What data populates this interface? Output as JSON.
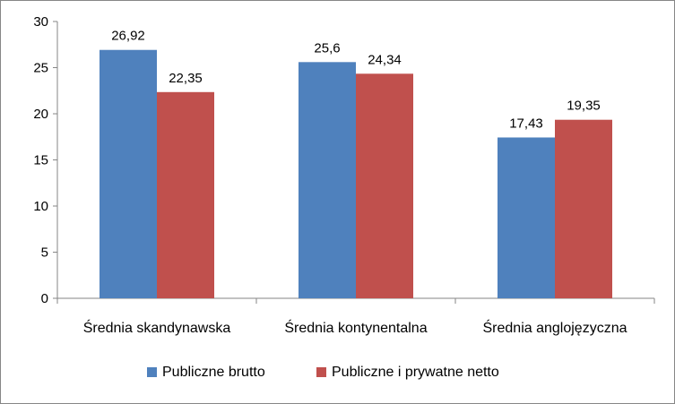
{
  "chart_data": {
    "type": "bar",
    "categories": [
      "Średnia skandynawska",
      "Średnia kontynentalna",
      "Średnia anglojęzyczna"
    ],
    "series": [
      {
        "name": "Publiczne brutto",
        "values": [
          26.92,
          25.6,
          17.43
        ],
        "labels": [
          "26,92",
          "25,6",
          "17,43"
        ],
        "color": "#4f81bd"
      },
      {
        "name": "Publiczne i prywatne netto",
        "values": [
          22.35,
          24.34,
          19.35
        ],
        "labels": [
          "22,35",
          "24,34",
          "19,35"
        ],
        "color": "#c0504d"
      }
    ],
    "ylim": [
      0,
      30
    ],
    "yticks": [
      0,
      5,
      10,
      15,
      20,
      25,
      30
    ],
    "ytick_labels": [
      "0",
      "5",
      "10",
      "15",
      "20",
      "25",
      "30"
    ],
    "legend_position": "bottom",
    "grid": false
  }
}
